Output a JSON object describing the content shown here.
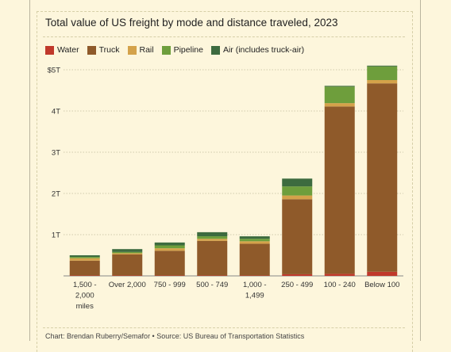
{
  "chart_data": {
    "type": "bar",
    "stacked": true,
    "title": "Total value of US freight by mode and distance traveled, 2023",
    "xlabel": "",
    "ylabel": "",
    "ylim": [
      0,
      5
    ],
    "y_ticks": [
      {
        "value": 1,
        "label": "1T"
      },
      {
        "value": 2,
        "label": "2T"
      },
      {
        "value": 3,
        "label": "3T"
      },
      {
        "value": 4,
        "label": "4T"
      },
      {
        "value": 5,
        "label": "$5T"
      }
    ],
    "grid": true,
    "legend_position": "top-left",
    "categories": [
      [
        "1,500 -",
        "2,000",
        "miles"
      ],
      [
        "Over 2,000"
      ],
      [
        "750 - 999"
      ],
      [
        "500 - 749"
      ],
      [
        "1,000 -",
        "1,499"
      ],
      [
        "250 - 499"
      ],
      [
        "100 - 240"
      ],
      [
        "Below 100"
      ]
    ],
    "series": [
      {
        "name": "Water",
        "color": "#c0392b",
        "values": [
          0.01,
          0.01,
          0.01,
          0.01,
          0.01,
          0.04,
          0.05,
          0.1
        ]
      },
      {
        "name": "Truck",
        "color": "#8f5a2a",
        "values": [
          0.36,
          0.51,
          0.6,
          0.84,
          0.77,
          1.82,
          4.06,
          4.57
        ]
      },
      {
        "name": "Rail",
        "color": "#d4a24a",
        "values": [
          0.06,
          0.03,
          0.06,
          0.05,
          0.06,
          0.09,
          0.08,
          0.08
        ]
      },
      {
        "name": "Pipeline",
        "color": "#6e9e3c",
        "values": [
          0.03,
          0.03,
          0.07,
          0.06,
          0.06,
          0.22,
          0.4,
          0.33
        ]
      },
      {
        "name": "Air (includes truck-air)",
        "color": "#3d6b3f",
        "values": [
          0.04,
          0.07,
          0.07,
          0.1,
          0.06,
          0.19,
          0.02,
          0.02
        ]
      }
    ]
  },
  "source": "Chart: Brendan Ruberry/Semafor • Source: US Bureau of Transportation Statistics"
}
